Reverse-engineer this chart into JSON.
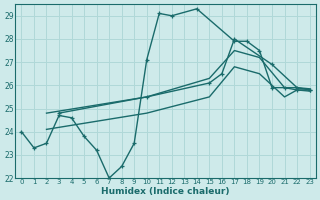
{
  "xlabel": "Humidex (Indice chaleur)",
  "xlim": [
    -0.5,
    23.5
  ],
  "ylim": [
    22,
    29.5
  ],
  "yticks": [
    22,
    23,
    24,
    25,
    26,
    27,
    28,
    29
  ],
  "background_color": "#ceeaea",
  "grid_color": "#b0d8d8",
  "line_color": "#1a6b6b",
  "line1_x": [
    0,
    1,
    2,
    3,
    4,
    5,
    6,
    7,
    8,
    9,
    10,
    11,
    12,
    14,
    17,
    18,
    19,
    20,
    21,
    22,
    23
  ],
  "line1_y": [
    24.0,
    23.3,
    23.5,
    24.7,
    24.6,
    23.8,
    23.2,
    22.0,
    22.5,
    23.5,
    27.1,
    29.1,
    29.0,
    29.3,
    27.9,
    27.9,
    27.5,
    25.9,
    25.9,
    25.8,
    25.8
  ],
  "line2_x": [
    3,
    10,
    15,
    16,
    17,
    20,
    22,
    23
  ],
  "line2_y": [
    24.8,
    25.5,
    26.1,
    26.5,
    28.0,
    26.9,
    25.9,
    25.8
  ],
  "line3_x": [
    2,
    10,
    15,
    17,
    19,
    21,
    22,
    23
  ],
  "line3_y": [
    24.8,
    25.5,
    26.3,
    27.5,
    27.2,
    25.9,
    25.9,
    25.85
  ],
  "line4_x": [
    2,
    10,
    15,
    17,
    19,
    21,
    22,
    23
  ],
  "line4_y": [
    24.1,
    24.8,
    25.5,
    26.8,
    26.5,
    25.5,
    25.8,
    25.75
  ]
}
